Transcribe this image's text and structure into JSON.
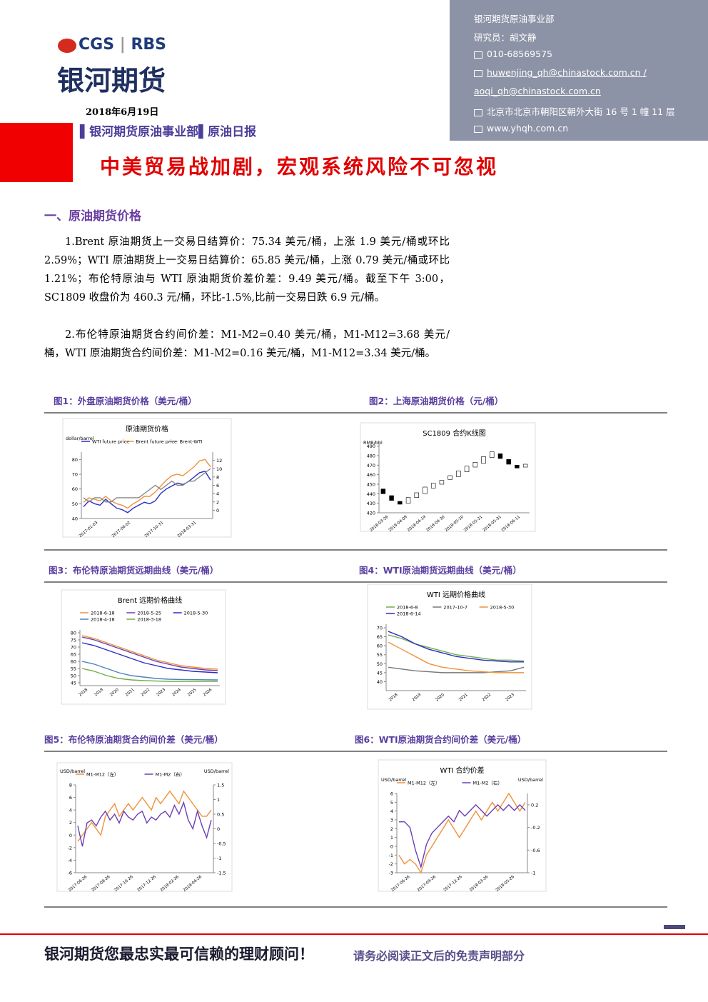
{
  "header": {
    "logo_left": "CGS",
    "logo_right": "RBS",
    "company": "银河期货",
    "date": "2018年6月19日",
    "department": "银河期货原油事业部",
    "report": "原油日报"
  },
  "contact": [
    "银河期货原油事业部",
    "研究员：胡文静",
    "010-68569575",
    "huwenjing_qh@chinastock.com.cn /",
    "aoqi_qh@chinastock.com.cn",
    "北京市北京市朝阳区朝外大街 16 号 1 幢 11 层",
    "www.yhqh.com.cn"
  ],
  "title": "中美贸易战加剧，宏观系统风险不可忽视",
  "section_heading": "一、原油期货价格",
  "paragraphs": [
    "1.Brent 原油期货上一交易日结算价：75.34 美元/桶，上涨 1.9 美元/桶或环比 2.59%；WTI 原油期货上一交易日结算价：65.85 美元/桶，上涨 0.79 美元/桶或环比 1.21%；布伦特原油与 WTI 原油期货价差价差：9.49 美元/桶。截至下午 3:00，SC1809 收盘价为 460.3 元/桶，环比-1.5%,比前一交易日跌 6.9 元/桶。",
    "2.布伦特原油期货合约间价差：M1-M2=0.40 美元/桶，M1-M12=3.68 美元/桶，WTI 原油期货合约间价差：M1-M2=0.16 美元/桶，M1-M12=3.34 美元/桶。"
  ],
  "figures": [
    {
      "caption": "图1：外盘原油期货价格（美元/桶）",
      "chart": {
        "type": "line",
        "title": "原油期货价格",
        "y_axis_label": "dollar/barrel",
        "ylim": [
          40,
          85
        ],
        "yticks": [
          40,
          50,
          60,
          70,
          80
        ],
        "y2lim": [
          -2,
          14
        ],
        "y2ticks": [
          0,
          2,
          4,
          6,
          8,
          10,
          12
        ],
        "x_labels": [
          "2017-01-03",
          "2017-06-02",
          "2017-10-31",
          "2018-03-31"
        ],
        "series": [
          {
            "name": "WTI future price",
            "color": "#2b2bc8",
            "values": [
              48,
              52,
              50,
              49,
              53,
              50,
              47,
              46,
              44,
              47,
              49,
              51,
              50,
              52,
              57,
              60,
              62,
              64,
              63,
              65,
              68,
              71,
              72,
              66
            ]
          },
          {
            "name": "Brent future price",
            "color": "#f0913a",
            "values": [
              51,
              54,
              53,
              52,
              55,
              52,
              50,
              49,
              47,
              50,
              52,
              55,
              55,
              58,
              62,
              66,
              69,
              70,
              69,
              72,
              75,
              79,
              80,
              75
            ]
          },
          {
            "name": "Brent-WTI",
            "color": "#888888",
            "axis": "y2",
            "values": [
              3,
              2,
              3,
              3,
              2,
              2,
              3,
              3,
              3,
              3,
              3,
              4,
              5,
              6,
              5,
              6,
              7,
              6,
              6,
              7,
              7,
              8,
              9,
              10
            ]
          }
        ]
      }
    },
    {
      "caption": "图2：上海原油期货价格（元/桶）",
      "chart": {
        "type": "candlestick",
        "title": "SC1809 合约K线图",
        "y_axis_label": "RMB/bbl",
        "ylim": [
          420,
          492
        ],
        "yticks": [
          420,
          430,
          440,
          450,
          460,
          470,
          480,
          490
        ],
        "x_labels": [
          "2018-03-26",
          "2018-04-09",
          "2018-04-19",
          "2018-04-30",
          "2018-05-10",
          "2018-05-21",
          "2018-05-31",
          "2018-06-11"
        ],
        "open": [
          445,
          438,
          432,
          430,
          436,
          440,
          446,
          450,
          455,
          458,
          463,
          468,
          472,
          478,
          482,
          476,
          470,
          468
        ],
        "close": [
          440,
          433,
          429,
          436,
          441,
          447,
          451,
          454,
          459,
          464,
          469,
          473,
          479,
          484,
          477,
          471,
          467,
          471
        ]
      }
    },
    {
      "caption": "图3：布伦特原油期货远期曲线（美元/桶）",
      "chart": {
        "type": "line",
        "title": "Brent 远期价格曲线",
        "ylim": [
          43,
          82
        ],
        "yticks": [
          45,
          50,
          55,
          60,
          65,
          70,
          75,
          80
        ],
        "x_labels": [
          "2018",
          "2019",
          "2020",
          "2021",
          "2022",
          "2023",
          "2024",
          "2025",
          "2026"
        ],
        "series": [
          {
            "name": "2018-6-18",
            "color": "#f0913a",
            "values": [
              78,
              76,
              73,
              70,
              67,
              64,
              61,
              59,
              57,
              56,
              55,
              54.5
            ]
          },
          {
            "name": "2018-5-25",
            "color": "#6b3fb5",
            "values": [
              77,
              75,
              72,
              69,
              66,
              63,
              60,
              58,
              56,
              55,
              54,
              53.5
            ]
          },
          {
            "name": "2018-5-30",
            "color": "#2b2bc8",
            "values": [
              73,
              71,
              68,
              65,
              62,
              59,
              57,
              55,
              54,
              53,
              52.5,
              52
            ]
          },
          {
            "name": "2018-4-18",
            "color": "#4f81bd",
            "values": [
              60,
              58,
              55,
              52,
              50,
              49,
              48,
              47.5,
              47.3,
              47.2,
              47.1,
              47
            ]
          },
          {
            "name": "2018-3-18",
            "color": "#70ad47",
            "values": [
              55,
              53,
              50,
              48,
              47,
              46.5,
              46.2,
              46,
              46,
              46,
              46,
              46
            ]
          }
        ]
      }
    },
    {
      "caption": "图4：WTI原油期货远期曲线（美元/桶）",
      "chart": {
        "type": "line",
        "title": "WTI 远期价格曲线",
        "ylim": [
          35,
          72
        ],
        "yticks": [
          40,
          45,
          50,
          55,
          60,
          65,
          70
        ],
        "x_labels": [
          "2018",
          "2019",
          "2020",
          "2021",
          "2022",
          "2023"
        ],
        "series": [
          {
            "name": "2018-6-8",
            "color": "#70ad47",
            "values": [
              66,
              64,
              61,
              59,
              57,
              55,
              54,
              53,
              52,
              52,
              51.5
            ]
          },
          {
            "name": "2017-10-7",
            "color": "#777777",
            "values": [
              48,
              47,
              46,
              45.5,
              45,
              45,
              45,
              45,
              45.5,
              46,
              48
            ]
          },
          {
            "name": "2018-5-30",
            "color": "#f0913a",
            "values": [
              62,
              58,
              54,
              50,
              48,
              47,
              46,
              45.5,
              45,
              45,
              45
            ]
          },
          {
            "name": "2018-6-14",
            "color": "#2b2bc8",
            "values": [
              68,
              65,
              61,
              58,
              56,
              54,
              53,
              52,
              51.5,
              51,
              51
            ]
          }
        ]
      }
    },
    {
      "caption": "图5：布伦特原油期货合约间价差（美元/桶）",
      "chart": {
        "type": "line",
        "y_axis_label": "USD/barrel",
        "y2_axis_label": "USD/barrel",
        "ylim": [
          -6,
          8
        ],
        "yticks": [
          -6,
          -4,
          -2,
          0,
          2,
          4,
          6,
          8
        ],
        "y2lim": [
          -1.5,
          1.5
        ],
        "y2ticks": [
          -1.5,
          -1,
          -0.5,
          0,
          0.5,
          1,
          1.5
        ],
        "x_labels": [
          "2017-06-26",
          "2017-08-26",
          "2017-10-26",
          "2017-12-26",
          "2018-02-26",
          "2018-04-26"
        ],
        "series": [
          {
            "name": "M1-M12（左）",
            "color": "#f0913a",
            "values": [
              -1,
              0,
              1,
              2,
              1,
              0,
              3,
              4,
              5,
              3,
              4,
              5,
              4,
              5,
              6,
              5,
              4,
              6,
              5,
              6,
              7,
              6,
              5,
              7,
              6,
              5,
              4,
              3,
              3,
              4
            ]
          },
          {
            "name": "M1-M2（右）",
            "color": "#6b3fb5",
            "axis": "y2",
            "values": [
              0.1,
              -0.6,
              0.2,
              0.3,
              0.1,
              0.4,
              0.6,
              0.3,
              0.5,
              0.2,
              0.6,
              0.4,
              0.3,
              0.5,
              0.6,
              0.2,
              0.4,
              0.3,
              0.5,
              0.6,
              0.4,
              0.8,
              0.5,
              0.9,
              0.3,
              0,
              0.6,
              0.1,
              -0.3,
              0.3
            ]
          }
        ]
      }
    },
    {
      "caption": "图6：WTI原油期货合约间价差（美元/桶）",
      "chart": {
        "type": "line",
        "title": "WTI 合约价差",
        "y_axis_label": "USD/barrel",
        "y2_axis_label": "USD/barrel",
        "ylim": [
          -3,
          6
        ],
        "yticks": [
          -3,
          -2,
          -1,
          0,
          1,
          2,
          3,
          4,
          5,
          6
        ],
        "y2lim": [
          -1,
          0.4
        ],
        "y2ticks": [
          -1,
          -0.6,
          -0.2,
          0.2
        ],
        "x_labels": [
          "2017-06-26",
          "2017-09-26",
          "2017-12-26",
          "2018-03-26",
          "2018-05-26"
        ],
        "series": [
          {
            "name": "M1-M12（左）",
            "color": "#f0913a",
            "values": [
              -1,
              -2,
              -1.5,
              -2,
              -3,
              -1,
              0,
              1,
              2,
              3,
              2,
              1,
              2,
              3,
              4,
              3,
              4,
              5,
              4,
              5,
              6,
              5,
              4,
              5
            ]
          },
          {
            "name": "M1-M2（右）",
            "color": "#6b3fb5",
            "axis": "y2",
            "values": [
              -0.1,
              -0.1,
              -0.2,
              -0.6,
              -0.9,
              -0.5,
              -0.3,
              -0.2,
              -0.1,
              0,
              -0.1,
              0.1,
              0,
              0.1,
              0.2,
              0.1,
              0,
              0.1,
              0.2,
              0.1,
              0.2,
              0.1,
              0.2,
              0.1
            ]
          }
        ]
      }
    }
  ],
  "footer": {
    "slogan": "银河期货您最忠实最可信赖的理财顾问！",
    "disclaimer": "请务必阅读正文后的免责声明部分"
  }
}
